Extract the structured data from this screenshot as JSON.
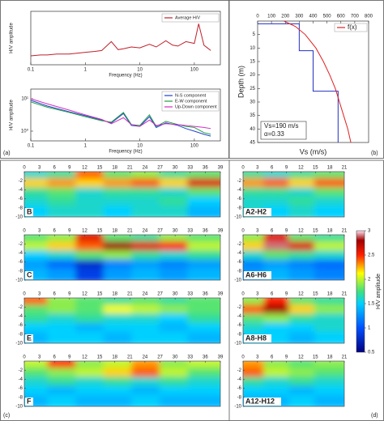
{
  "panel_labels": [
    "(a)",
    "(b)",
    "(c)",
    "(d)"
  ],
  "colorbar": {
    "label": "H/V amplitude",
    "lim": [
      0.5,
      3
    ],
    "ticks": [
      0.5,
      1,
      1.5,
      2,
      2.5,
      3
    ]
  },
  "chart_data": [
    {
      "type": "line",
      "xlabel": "Frequency (Hz)",
      "ylabel": "H/V amplitude",
      "xlog": true,
      "x": [
        0.1,
        0.15,
        0.2,
        0.3,
        0.5,
        0.7,
        1,
        1.5,
        2,
        3,
        4,
        5,
        7,
        10,
        15,
        20,
        30,
        40,
        50,
        70,
        100,
        120,
        150,
        200
      ],
      "xlim": [
        0.1,
        300
      ],
      "xticks": [
        0.1,
        1,
        10,
        100
      ],
      "ylim": [
        0,
        6
      ],
      "series": [
        {
          "name": "Average H/V",
          "color": "#c0202a",
          "values": [
            1.0,
            1.1,
            1.1,
            1.2,
            1.2,
            1.3,
            1.4,
            1.5,
            1.6,
            2.6,
            1.7,
            1.8,
            2.0,
            1.9,
            2.3,
            2.0,
            2.7,
            2.2,
            2.1,
            2.6,
            2.4,
            4.6,
            2.2,
            1.6
          ]
        }
      ]
    },
    {
      "type": "line",
      "xlabel": "Frequency (Hz)",
      "ylabel": "H/V amplitude",
      "xlog": true,
      "ylog": true,
      "x": [
        0.1,
        0.2,
        0.5,
        1,
        2,
        3,
        5,
        7,
        10,
        15,
        20,
        30,
        50,
        70,
        100,
        150,
        200
      ],
      "xlim": [
        0.1,
        300
      ],
      "xticks": [
        0.1,
        1,
        10,
        100
      ],
      "ylim": [
        0.5,
        20
      ],
      "yticks": [
        {
          "value": 1,
          "label": "10⁰"
        },
        {
          "value": 10,
          "label": "10¹"
        }
      ],
      "series": [
        {
          "name": "N-S component",
          "color": "#2040d0",
          "values": [
            9,
            6,
            4,
            3,
            2.2,
            1.8,
            3.5,
            1.5,
            1.4,
            2.8,
            1.3,
            1.8,
            1.5,
            1.2,
            1.0,
            0.8,
            0.7
          ]
        },
        {
          "name": "E-W component",
          "color": "#20a040",
          "values": [
            8,
            5.5,
            3.8,
            2.8,
            2.1,
            1.9,
            3.8,
            1.6,
            1.5,
            3.2,
            1.4,
            2.0,
            1.6,
            1.4,
            1.3,
            0.9,
            0.8
          ]
        },
        {
          "name": "Up-Down component",
          "color": "#d030c0",
          "values": [
            10,
            7,
            4.5,
            3.2,
            2.3,
            1.7,
            2.6,
            1.6,
            1.4,
            2.2,
            1.5,
            1.7,
            1.6,
            1.5,
            1.4,
            1.3,
            1.2
          ]
        }
      ]
    },
    {
      "type": "line",
      "xlabel": "Vs (m/s)",
      "ylabel": "Depth (m)",
      "annotations": [
        "Vs=190 m/s",
        "α=0.33"
      ],
      "xlim": [
        0,
        800
      ],
      "xticks": [
        0,
        100,
        200,
        300,
        400,
        500,
        600,
        700,
        800
      ],
      "ylim": [
        45,
        0
      ],
      "yticks": [
        5,
        10,
        15,
        20,
        25,
        30,
        35,
        40,
        45
      ],
      "series": [
        {
          "color": "#2030c0",
          "x": [
            0,
            300,
            300,
            400,
            400,
            580,
            580
          ],
          "values": [
            1,
            1,
            11,
            11,
            26,
            26,
            45
          ]
        },
        {
          "name": "f(x)",
          "color": "#e02020",
          "x": [
            190,
            272,
            343,
            420,
            474,
            520,
            560,
            590,
            620,
            650,
            672
          ],
          "values": [
            0,
            2,
            5,
            10,
            15,
            20,
            25,
            30,
            35,
            40,
            45
          ]
        }
      ]
    },
    {
      "type": "heatmap",
      "title": "B",
      "xlim": [
        0,
        39
      ],
      "xticks": [
        0,
        3,
        6,
        9,
        12,
        15,
        18,
        21,
        24,
        27,
        30,
        33,
        36,
        39
      ],
      "ylim": [
        -10,
        0
      ],
      "yticks": [
        -2,
        -4,
        -6,
        -8,
        -10
      ],
      "z": [
        [
          1.6,
          1.7,
          2.4,
          1.8,
          1.9,
          1.7,
          1.8
        ],
        [
          2.2,
          2.3,
          2.2,
          2.3,
          2.4,
          2.2,
          2.6
        ],
        [
          1.7,
          1.8,
          1.6,
          1.7,
          1.7,
          1.6,
          1.8
        ],
        [
          1.6,
          1.7,
          1.6,
          1.6,
          1.6,
          1.7,
          1.5
        ],
        [
          1.5,
          1.6,
          1.6,
          1.5,
          1.6,
          1.6,
          1.4
        ]
      ]
    },
    {
      "type": "heatmap",
      "title": "A2-H2",
      "xlim": [
        0,
        21
      ],
      "xticks": [
        0,
        3,
        6,
        9,
        12,
        15,
        18,
        21
      ],
      "ylim": [
        -10,
        0
      ],
      "yticks": [
        -2,
        -4,
        -6,
        -8,
        -10
      ],
      "z": [
        [
          1.7,
          1.6,
          1.7,
          1.8
        ],
        [
          2.3,
          2.4,
          2.2,
          2.4
        ],
        [
          1.7,
          1.7,
          1.6,
          1.8
        ],
        [
          1.6,
          1.6,
          1.7,
          1.6
        ],
        [
          1.6,
          1.5,
          1.6,
          1.5
        ]
      ]
    },
    {
      "type": "heatmap",
      "title": "C",
      "xlim": [
        0,
        39
      ],
      "xticks": [
        0,
        3,
        6,
        9,
        12,
        15,
        18,
        21,
        24,
        27,
        30,
        33,
        36,
        39
      ],
      "ylim": [
        -10,
        0
      ],
      "yticks": [
        -2,
        -4,
        -6,
        -8,
        -10
      ],
      "z": [
        [
          1.8,
          1.9,
          2.6,
          1.8,
          1.7,
          1.9,
          1.8
        ],
        [
          2.0,
          2.2,
          2.4,
          2.8,
          2.6,
          2.5,
          2.0
        ],
        [
          1.5,
          1.6,
          1.8,
          1.9,
          1.7,
          1.6,
          1.7
        ],
        [
          1.3,
          1.1,
          0.8,
          1.2,
          1.3,
          1.2,
          1.3
        ],
        [
          1.4,
          1.3,
          0.9,
          1.3,
          1.4,
          1.3,
          1.4
        ]
      ]
    },
    {
      "type": "heatmap",
      "title": "A6-H6",
      "xlim": [
        0,
        21
      ],
      "xticks": [
        0,
        3,
        6,
        9,
        12,
        15,
        18,
        21
      ],
      "ylim": [
        -10,
        0
      ],
      "yticks": [
        -2,
        -4,
        -6,
        -8,
        -10
      ],
      "z": [
        [
          1.9,
          2.6,
          1.8,
          1.7
        ],
        [
          2.2,
          2.9,
          2.6,
          2.0
        ],
        [
          1.6,
          1.8,
          1.7,
          1.6
        ],
        [
          1.2,
          1.3,
          1.2,
          1.1
        ],
        [
          1.3,
          1.4,
          1.3,
          1.2
        ]
      ]
    },
    {
      "type": "heatmap",
      "title": "E",
      "xlim": [
        0,
        39
      ],
      "xticks": [
        0,
        3,
        6,
        9,
        12,
        15,
        18,
        21,
        24,
        27,
        30,
        33,
        36,
        39
      ],
      "ylim": [
        -10,
        0
      ],
      "yticks": [
        -2,
        -4,
        -6,
        -8,
        -10
      ],
      "z": [
        [
          2.4,
          1.9,
          1.8,
          1.7,
          1.8,
          1.7,
          1.8
        ],
        [
          1.8,
          1.9,
          1.8,
          2.1,
          2.0,
          1.9,
          1.8
        ],
        [
          1.7,
          1.6,
          1.7,
          1.6,
          1.6,
          1.5,
          1.7
        ],
        [
          1.5,
          1.5,
          1.4,
          1.5,
          1.5,
          1.4,
          1.5
        ],
        [
          1.4,
          1.5,
          1.5,
          1.4,
          1.5,
          1.5,
          1.4
        ]
      ]
    },
    {
      "type": "heatmap",
      "title": "A8-H8",
      "xlim": [
        0,
        21
      ],
      "xticks": [
        0,
        3,
        6,
        9,
        12,
        15,
        18,
        21
      ],
      "ylim": [
        -10,
        0
      ],
      "yticks": [
        -2,
        -4,
        -6,
        -8,
        -10
      ],
      "z": [
        [
          1.9,
          2.5,
          1.8,
          1.7
        ],
        [
          2.4,
          2.8,
          2.2,
          1.9
        ],
        [
          1.8,
          1.9,
          1.7,
          1.6
        ],
        [
          1.6,
          1.5,
          1.5,
          1.6
        ],
        [
          1.5,
          1.5,
          1.4,
          1.5
        ]
      ]
    },
    {
      "type": "heatmap",
      "title": "F",
      "xlim": [
        0,
        39
      ],
      "xticks": [
        0,
        3,
        6,
        9,
        12,
        15,
        18,
        21,
        24,
        27,
        30,
        33,
        36,
        39
      ],
      "ylim": [
        -10,
        0
      ],
      "yticks": [
        -2,
        -4,
        -6,
        -8,
        -10
      ],
      "z": [
        [
          2.0,
          2.5,
          1.9,
          2.0,
          2.3,
          1.9,
          2.0
        ],
        [
          1.8,
          1.9,
          2.0,
          2.2,
          2.4,
          2.0,
          1.8
        ],
        [
          1.6,
          1.7,
          1.6,
          1.7,
          1.6,
          1.7,
          1.6
        ],
        [
          1.5,
          1.4,
          1.5,
          1.5,
          1.4,
          1.5,
          1.5
        ],
        [
          1.4,
          1.5,
          1.4,
          1.4,
          1.5,
          1.4,
          1.4
        ]
      ]
    },
    {
      "type": "heatmap",
      "title": "A12-H12",
      "xlim": [
        0,
        21
      ],
      "xticks": [
        0,
        3,
        6,
        9,
        12,
        15,
        18,
        21
      ],
      "ylim": [
        -10,
        0
      ],
      "yticks": [
        -2,
        -4,
        -6,
        -8,
        -10
      ],
      "z": [
        [
          2.3,
          1.9,
          1.8,
          1.9
        ],
        [
          2.4,
          2.0,
          1.9,
          1.8
        ],
        [
          1.7,
          1.6,
          1.7,
          1.6
        ],
        [
          1.5,
          1.5,
          1.4,
          1.5
        ],
        [
          1.4,
          1.4,
          1.5,
          1.4
        ]
      ]
    }
  ]
}
